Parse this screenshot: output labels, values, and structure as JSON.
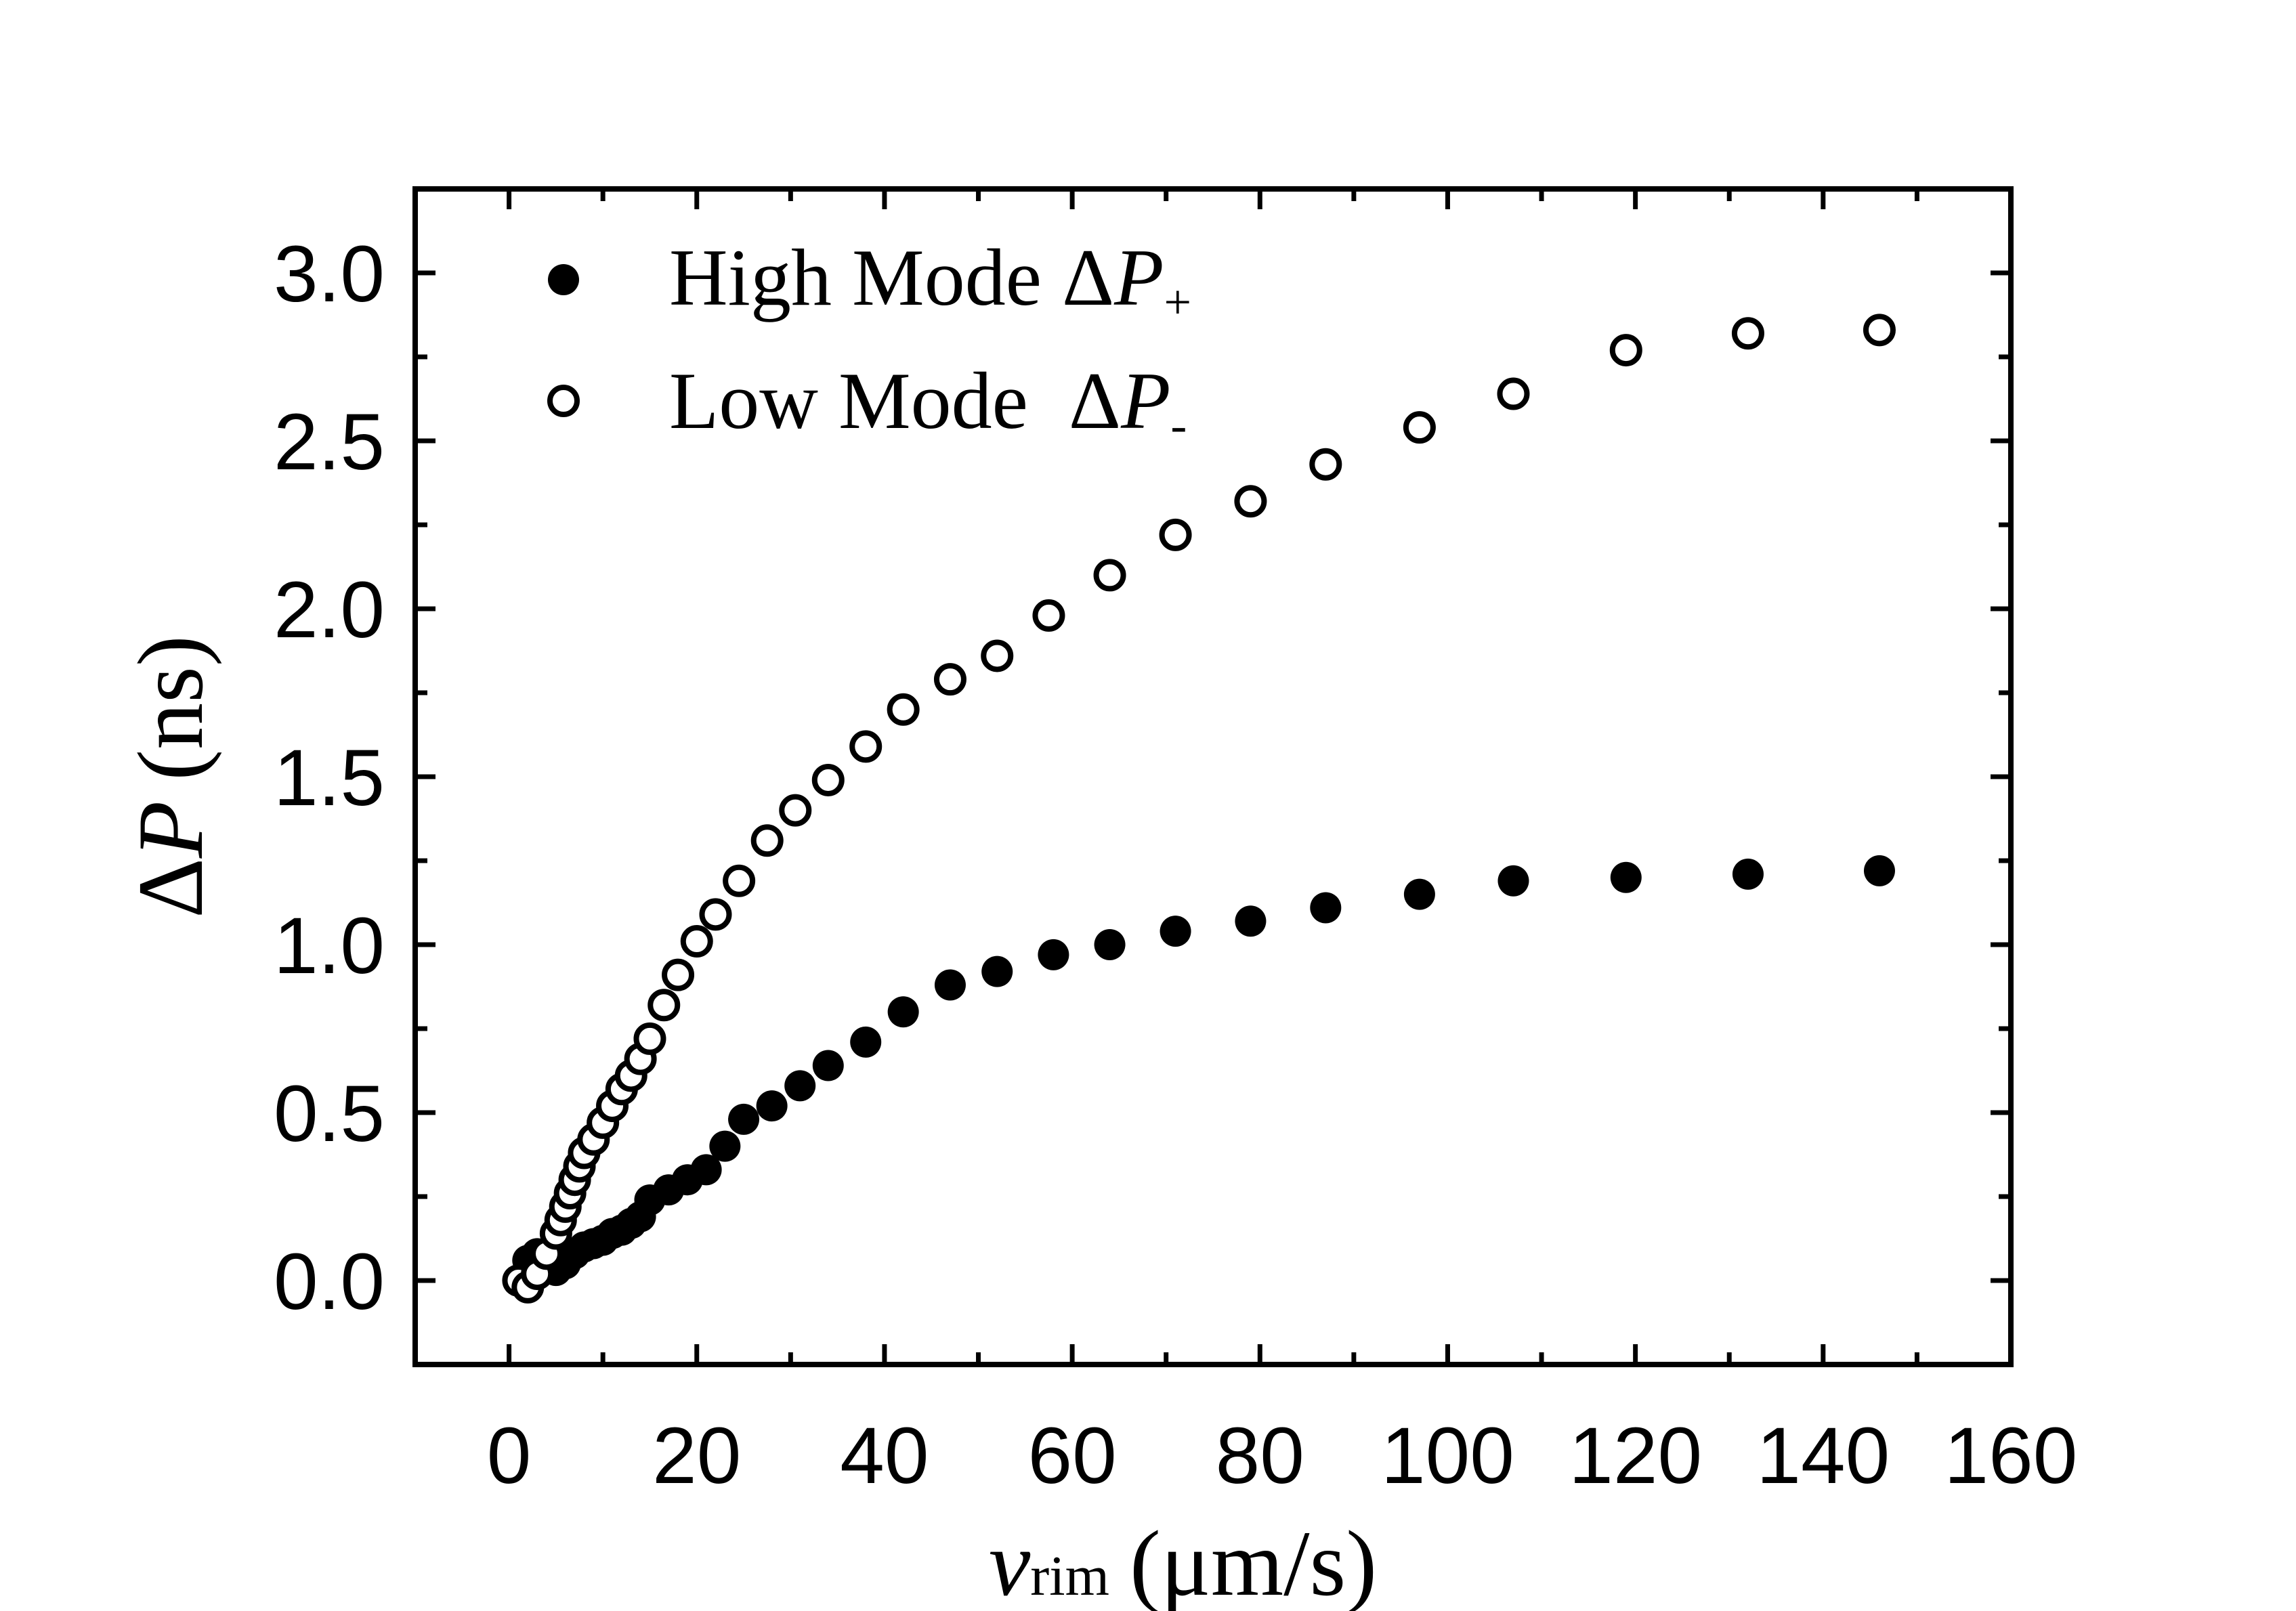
{
  "chart_data": {
    "type": "scatter",
    "title": "",
    "xlabel": {
      "main": "v",
      "sub": "rim",
      "units": "(μm/s)"
    },
    "ylabel": {
      "delta": "Δ",
      "main": "P",
      "units": "(ns)"
    },
    "xlim": [
      -10,
      160
    ],
    "ylim": [
      -0.25,
      3.25
    ],
    "xticks": [
      0,
      20,
      40,
      60,
      80,
      100,
      120,
      140,
      160
    ],
    "xtick_labels": [
      "0",
      "20",
      "40",
      "60",
      "80",
      "100",
      "120",
      "140",
      "160"
    ],
    "yticks": [
      0.0,
      0.5,
      1.0,
      1.5,
      2.0,
      2.5,
      3.0
    ],
    "ytick_labels": [
      "0.0",
      "0.5",
      "1.0",
      "1.5",
      "2.0",
      "2.5",
      "3.0"
    ],
    "grid": false,
    "legend_position": "top-left",
    "series": [
      {
        "name": "High Mode ΔP+",
        "legend": {
          "prefix": "High Mode Δ",
          "var": "P",
          "sub": "+"
        },
        "marker": "filled-circle",
        "color": "#000000",
        "x": [
          2,
          3,
          4,
          5,
          6,
          7,
          8,
          9,
          10,
          11,
          12,
          13,
          14,
          15,
          17,
          19,
          21,
          23,
          25,
          28,
          31,
          34,
          38,
          42,
          47,
          52,
          58,
          64,
          71,
          79,
          87,
          97,
          107,
          119,
          132,
          146
        ],
        "y": [
          0.06,
          0.08,
          0.04,
          0.03,
          0.05,
          0.08,
          0.1,
          0.11,
          0.12,
          0.14,
          0.15,
          0.17,
          0.19,
          0.24,
          0.27,
          0.3,
          0.33,
          0.4,
          0.48,
          0.52,
          0.58,
          0.64,
          0.71,
          0.8,
          0.88,
          0.92,
          0.97,
          1.0,
          1.04,
          1.07,
          1.11,
          1.15,
          1.19,
          1.2,
          1.21,
          1.22
        ]
      },
      {
        "name": "Low Mode ΔP-",
        "legend": {
          "prefix": "Low Mode  Δ",
          "var": "P",
          "sub": "-"
        },
        "marker": "open-circle",
        "color": "#000000",
        "x": [
          1,
          2,
          3,
          4,
          5,
          5.5,
          6,
          6.5,
          7,
          7.5,
          8,
          9,
          10,
          11,
          12,
          13,
          14,
          15,
          16.5,
          18,
          20,
          22,
          24.5,
          27.5,
          30.5,
          34,
          38,
          42,
          47,
          52,
          57.5,
          64,
          71,
          79,
          87,
          97,
          107,
          119,
          132,
          146
        ],
        "y": [
          0.0,
          -0.02,
          0.02,
          0.08,
          0.14,
          0.18,
          0.22,
          0.26,
          0.3,
          0.34,
          0.38,
          0.42,
          0.47,
          0.52,
          0.57,
          0.61,
          0.66,
          0.72,
          0.82,
          0.91,
          1.01,
          1.09,
          1.19,
          1.31,
          1.4,
          1.49,
          1.59,
          1.7,
          1.79,
          1.86,
          1.98,
          2.1,
          2.22,
          2.32,
          2.43,
          2.54,
          2.64,
          2.77,
          2.82,
          2.83
        ]
      }
    ]
  }
}
